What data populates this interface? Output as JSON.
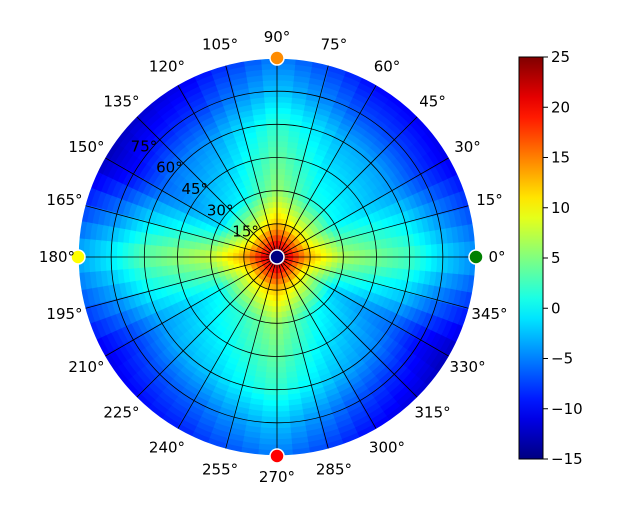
{
  "chart_data": {
    "type": "heatmap",
    "projection": "polar",
    "title": "",
    "angular_tick_labels": [
      "0°",
      "15°",
      "30°",
      "45°",
      "60°",
      "75°",
      "90°",
      "105°",
      "120°",
      "135°",
      "150°",
      "165°",
      "180°",
      "195°",
      "210°",
      "225°",
      "240°",
      "255°",
      "270°",
      "285°",
      "300°",
      "315°",
      "330°",
      "345°"
    ],
    "radial_tick_labels": [
      "15°",
      "30°",
      "45°",
      "60°",
      "75°"
    ],
    "radial_label_angle_deg": 140,
    "radial_range": [
      0,
      90
    ],
    "grid": true,
    "colormap": "jet",
    "colorbar": {
      "placement": "right",
      "min": -15,
      "max": 25,
      "ticks": [
        -15,
        -10,
        -5,
        0,
        5,
        10,
        15,
        20,
        25
      ],
      "tick_labels": [
        "−15",
        "−10",
        "−5",
        "0",
        "5",
        "10",
        "15",
        "20",
        "25"
      ]
    },
    "markers": [
      {
        "name": "pole",
        "angle_deg": 0,
        "radius_deg": 0,
        "color": "#000080"
      },
      {
        "name": "east",
        "angle_deg": 0,
        "radius_deg": 90,
        "color": "#008000"
      },
      {
        "name": "north",
        "angle_deg": 90,
        "radius_deg": 90,
        "color": "#FF8C00"
      },
      {
        "name": "west",
        "angle_deg": 180,
        "radius_deg": 90,
        "color": "#FFFF00"
      },
      {
        "name": "south",
        "angle_deg": 270,
        "radius_deg": 90,
        "color": "#FF0000"
      }
    ],
    "field_description": {
      "center_value": 25,
      "radial_profile": [
        [
          0,
          25
        ],
        [
          15,
          12
        ],
        [
          30,
          5
        ],
        [
          45,
          3
        ],
        [
          60,
          1
        ],
        [
          75,
          -3
        ],
        [
          90,
          -6
        ]
      ],
      "angular_modulation": [
        [
          0,
          2
        ],
        [
          30,
          -5
        ],
        [
          60,
          -4
        ],
        [
          90,
          1
        ],
        [
          120,
          -5
        ],
        [
          150,
          -7
        ],
        [
          180,
          3
        ],
        [
          210,
          -5
        ],
        [
          240,
          -3
        ],
        [
          270,
          1
        ],
        [
          300,
          -4
        ],
        [
          330,
          -7
        ]
      ]
    }
  }
}
